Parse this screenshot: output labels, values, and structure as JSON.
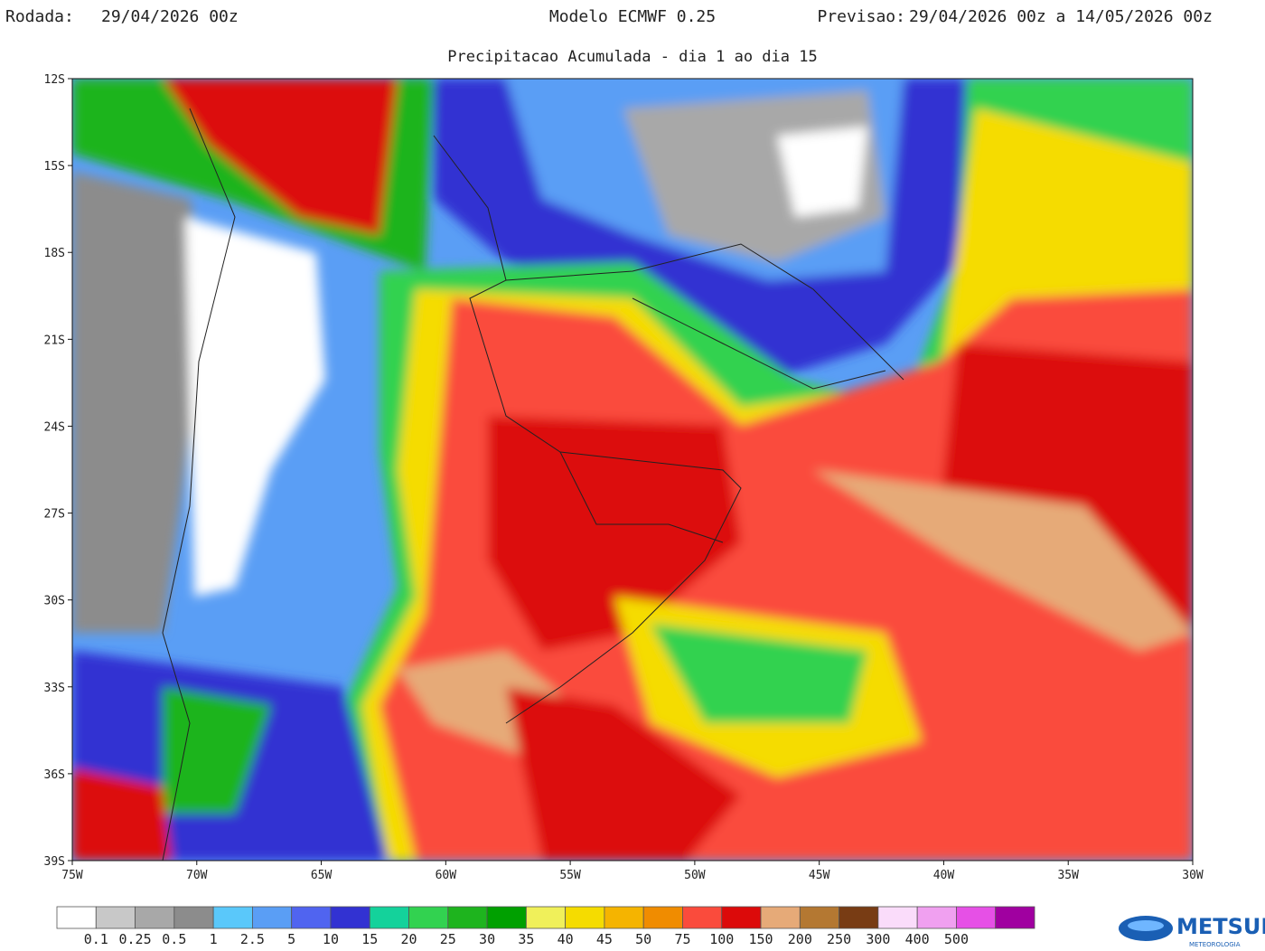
{
  "header": {
    "left_label": "Rodada:",
    "left_value": "29/04/2026 00z",
    "center": "Modelo ECMWF 0.25",
    "right_label": "Previsao:",
    "right_value": "29/04/2026 00z a 14/05/2026 00z",
    "subtitle": "Precipitacao Acumulada - dia 1 ao dia 15"
  },
  "map": {
    "lat_labels": [
      "12S",
      "15S",
      "18S",
      "21S",
      "24S",
      "27S",
      "30S",
      "33S",
      "36S",
      "39S"
    ],
    "lon_labels": [
      "75W",
      "70W",
      "65W",
      "60W",
      "55W",
      "50W",
      "45W",
      "40W",
      "35W",
      "30W"
    ]
  },
  "legend": {
    "colors": [
      "#ffffff",
      "#c8c8c8",
      "#a8a8a8",
      "#8c8c8c",
      "#5ac8fa",
      "#5a9ef5",
      "#5064f0",
      "#3232d2",
      "#14d29b",
      "#32d250",
      "#1eb41e",
      "#00a000",
      "#f0f05a",
      "#f5dc00",
      "#f5b400",
      "#f08c00",
      "#fa4b3c",
      "#dc0a0a",
      "#e6aa78",
      "#b47832",
      "#783c14",
      "#fadcfa",
      "#f0a0f0",
      "#e650e6",
      "#a000a0"
    ],
    "labels": [
      "0.1",
      "0.25",
      "0.5",
      "1",
      "2.5",
      "5",
      "10",
      "15",
      "20",
      "25",
      "30",
      "35",
      "40",
      "45",
      "50",
      "75",
      "100",
      "150",
      "200",
      "250",
      "300",
      "400",
      "500"
    ]
  },
  "logo": {
    "text": "METSUL",
    "subtext": "METEOROLOGIA"
  }
}
